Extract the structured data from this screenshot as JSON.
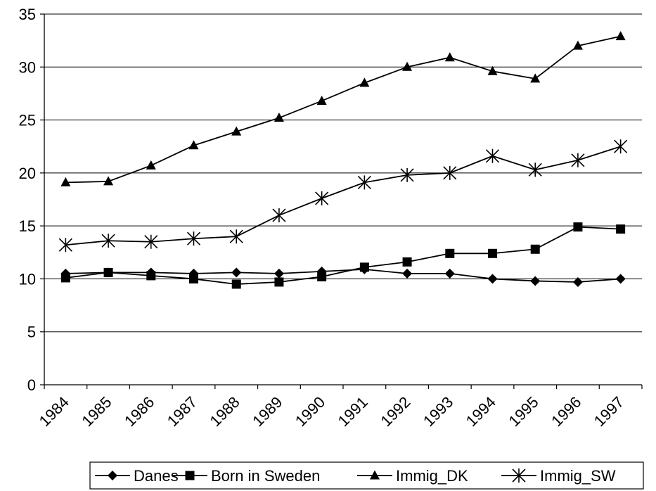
{
  "chart_data": {
    "type": "line",
    "title": "",
    "xlabel": "",
    "ylabel": "",
    "categories": [
      "1984",
      "1985",
      "1986",
      "1987",
      "1988",
      "1989",
      "1990",
      "1991",
      "1992",
      "1993",
      "1994",
      "1995",
      "1996",
      "1997"
    ],
    "ylim": [
      0,
      35
    ],
    "yticks": [
      "0",
      "5",
      "10",
      "15",
      "20",
      "25",
      "30",
      "35"
    ],
    "grid": "horizontal",
    "legend_position": "bottom",
    "series": [
      {
        "name": "Danes",
        "marker": "diamond",
        "values": [
          10.5,
          10.6,
          10.6,
          10.5,
          10.6,
          10.5,
          10.7,
          10.9,
          10.5,
          10.5,
          10.0,
          9.8,
          9.7,
          10.0
        ]
      },
      {
        "name": "Born in Sweden",
        "marker": "square",
        "values": [
          10.1,
          10.6,
          10.3,
          10.0,
          9.5,
          9.7,
          10.2,
          11.1,
          11.6,
          12.4,
          12.4,
          12.8,
          14.9,
          14.7
        ]
      },
      {
        "name": "Immig_DK",
        "marker": "triangle",
        "values": [
          19.1,
          19.2,
          20.7,
          22.6,
          23.9,
          25.2,
          26.8,
          28.5,
          30.0,
          30.9,
          29.6,
          28.9,
          32.0,
          32.9
        ]
      },
      {
        "name": "Immig_SW",
        "marker": "asterisk",
        "values": [
          13.2,
          13.6,
          13.5,
          13.8,
          14.0,
          16.0,
          17.6,
          19.1,
          19.8,
          20.0,
          21.6,
          20.3,
          21.2,
          22.5
        ]
      }
    ]
  }
}
